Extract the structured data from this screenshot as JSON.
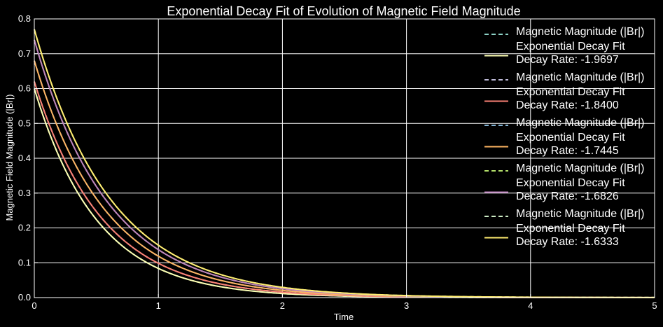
{
  "chart_data": {
    "type": "line",
    "title": "Exponential Decay Fit of Evolution of Magnetic Field Magnitude",
    "xlabel": "Time",
    "ylabel": "Magnetic Field Magnitude (|Br|)",
    "xlim": [
      0,
      5
    ],
    "ylim": [
      0,
      0.8
    ],
    "xticks": [
      "0",
      "1",
      "2",
      "3",
      "4",
      "5"
    ],
    "yticks": [
      "0.0",
      "0.1",
      "0.2",
      "0.3",
      "0.4",
      "0.5",
      "0.6",
      "0.7",
      "0.8"
    ],
    "grid": true,
    "legend_position": "top-right",
    "series": [
      {
        "name": "Magnetic Magnitude (|Br|)",
        "style": "dashed",
        "color": "#8dd3c7",
        "a": 0.6,
        "rate": -1.9697
      },
      {
        "name": "Exponential Decay Fit\nDecay Rate: -1.9697",
        "style": "solid",
        "color": "#feffb3",
        "a": 0.6,
        "rate": -1.9697
      },
      {
        "name": "Magnetic Magnitude (|Br|)",
        "style": "dashed",
        "color": "#bfbbd9",
        "a": 0.62,
        "rate": -1.84
      },
      {
        "name": "Exponential Decay Fit\nDecay Rate: -1.8400",
        "style": "solid",
        "color": "#fa8174",
        "a": 0.62,
        "rate": -1.84
      },
      {
        "name": "Magnetic Magnitude (|Br|)",
        "style": "dashed",
        "color": "#81b1d2",
        "a": 0.68,
        "rate": -1.7445
      },
      {
        "name": "Exponential Decay Fit\nDecay Rate: -1.7445",
        "style": "solid",
        "color": "#fdb462",
        "a": 0.68,
        "rate": -1.7445
      },
      {
        "name": "Magnetic Magnitude (|Br|)",
        "style": "dashed",
        "color": "#b3de69",
        "a": 0.74,
        "rate": -1.6826
      },
      {
        "name": "Exponential Decay Fit\nDecay Rate: -1.6826",
        "style": "solid",
        "color": "#bc82bd",
        "a": 0.74,
        "rate": -1.6826
      },
      {
        "name": "Magnetic Magnitude (|Br|)",
        "style": "dashed",
        "color": "#ccebc4",
        "a": 0.77,
        "rate": -1.6333
      },
      {
        "name": "Exponential Decay Fit\nDecay Rate: -1.6333",
        "style": "solid",
        "color": "#ffed6f",
        "a": 0.77,
        "rate": -1.6333
      }
    ]
  },
  "colors": {
    "background": "#000000",
    "foreground": "#ffffff"
  }
}
